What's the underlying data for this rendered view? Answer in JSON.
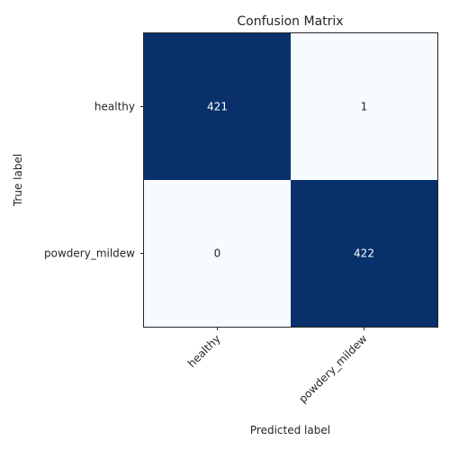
{
  "chart_data": {
    "type": "heatmap",
    "title": "Confusion Matrix",
    "xlabel": "Predicted label",
    "ylabel": "True label",
    "x_categories": [
      "healthy",
      "powdery_mildew"
    ],
    "y_categories": [
      "healthy",
      "powdery_mildew"
    ],
    "values": [
      [
        421,
        1
      ],
      [
        0,
        422
      ]
    ],
    "vmin": 0,
    "vmax": 422,
    "colormap": {
      "low": "#f7fbff",
      "high": "#08306b"
    },
    "cell_text_dark": "#262626",
    "cell_text_light": "#ffffff",
    "grid": false,
    "legend": "none"
  }
}
